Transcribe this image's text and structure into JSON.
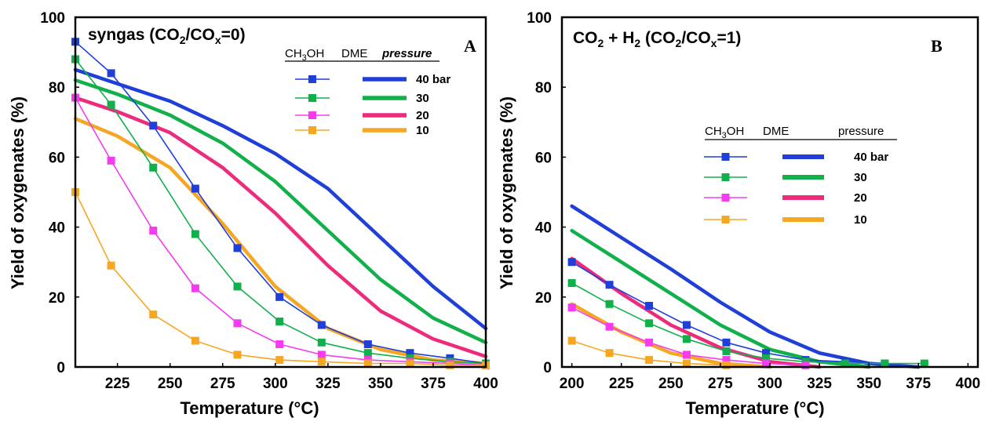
{
  "chart_data": [
    {
      "panel": "A",
      "type": "line",
      "title_main": "syngas (CO",
      "title_sub1": "2",
      "title_mid": "/CO",
      "title_sub2": "x",
      "title_end": "=0)",
      "xlabel": "Temperature (°C)",
      "ylabel": "Yield of oxygenates (%)",
      "xlim": [
        205,
        400
      ],
      "ylim": [
        0,
        100
      ],
      "xticks": [
        225,
        250,
        275,
        300,
        325,
        350,
        375,
        400
      ],
      "yticks": [
        0,
        20,
        40,
        60,
        80,
        100
      ],
      "legend": {
        "placement": "top-right",
        "headers": [
          "CH3OH",
          "DME",
          "pressure"
        ],
        "header_ch3oh_main": "CH",
        "header_ch3oh_sub": "3",
        "header_ch3oh_end": "OH",
        "header_dme": "DME",
        "header_pressure": "pressure",
        "pressure_italic": true,
        "labels": [
          "40 bar",
          "30",
          "20",
          "10"
        ]
      },
      "series": [
        {
          "group": "CH3OH",
          "pressure": "40 bar",
          "color": "#1f3fd8",
          "markers": true,
          "x": [
            205,
            222,
            242,
            262,
            282,
            302,
            322,
            344,
            364,
            383,
            400
          ],
          "y": [
            93,
            84,
            69,
            51,
            34,
            20,
            12,
            6.5,
            4,
            2.5,
            1
          ]
        },
        {
          "group": "CH3OH",
          "pressure": "30",
          "color": "#12b04a",
          "markers": true,
          "x": [
            205,
            222,
            242,
            262,
            282,
            302,
            322,
            344,
            364,
            383,
            400
          ],
          "y": [
            88,
            75,
            57,
            38,
            23,
            13,
            7,
            4,
            2.5,
            1.5,
            1
          ]
        },
        {
          "group": "CH3OH",
          "pressure": "20",
          "color": "#f43bf0",
          "markers": true,
          "x": [
            205,
            222,
            242,
            262,
            282,
            302,
            322,
            344,
            364,
            383,
            400
          ],
          "y": [
            77,
            59,
            39,
            22.5,
            12.5,
            6.5,
            3.5,
            2,
            1.5,
            1,
            0.5
          ]
        },
        {
          "group": "CH3OH",
          "pressure": "10",
          "color": "#f5a623",
          "markers": true,
          "x": [
            205,
            222,
            242,
            262,
            282,
            302,
            322,
            344,
            364,
            383,
            400
          ],
          "y": [
            50,
            29,
            15,
            7.5,
            3.5,
            2,
            1.5,
            1,
            1,
            0.5,
            0.5
          ]
        },
        {
          "group": "DME",
          "pressure": "40 bar",
          "color": "#1f3fd8",
          "markers": false,
          "x": [
            205,
            225,
            250,
            275,
            300,
            325,
            350,
            375,
            400
          ],
          "y": [
            85,
            81,
            76,
            69,
            61,
            51,
            37,
            23,
            11
          ]
        },
        {
          "group": "DME",
          "pressure": "30",
          "color": "#12b04a",
          "markers": false,
          "x": [
            205,
            225,
            250,
            275,
            300,
            325,
            350,
            375,
            400
          ],
          "y": [
            82,
            78,
            72,
            64,
            53,
            39,
            25,
            14,
            7
          ]
        },
        {
          "group": "DME",
          "pressure": "20",
          "color": "#ee2a7b",
          "markers": false,
          "x": [
            205,
            225,
            250,
            275,
            300,
            325,
            350,
            375,
            400
          ],
          "y": [
            77,
            73,
            67,
            57,
            44,
            29,
            16,
            8,
            3
          ]
        },
        {
          "group": "DME",
          "pressure": "10",
          "color": "#f5a623",
          "markers": false,
          "x": [
            205,
            225,
            250,
            275,
            300,
            325,
            350,
            375,
            400
          ],
          "y": [
            71,
            66,
            57,
            41,
            23,
            11,
            5,
            2,
            1
          ]
        }
      ]
    },
    {
      "panel": "B",
      "type": "line",
      "title_main": "CO",
      "title_sub1": "2",
      "title_mid": " + H",
      "title_sub2": "2",
      "title_mid2": " (CO",
      "title_sub3": "2",
      "title_mid3": "/CO",
      "title_sub4": "x",
      "title_end": "=1)",
      "xlabel": "Temperature (°C)",
      "ylabel": "Yield of oxygenates (%)",
      "xlim": [
        195,
        405
      ],
      "ylim": [
        0,
        100
      ],
      "xticks": [
        200,
        225,
        250,
        275,
        300,
        325,
        350,
        375,
        400
      ],
      "yticks": [
        0,
        20,
        40,
        60,
        80,
        100
      ],
      "legend": {
        "placement": "center-right",
        "header_ch3oh_main": "CH",
        "header_ch3oh_sub": "3",
        "header_ch3oh_end": "OH",
        "header_dme": "DME",
        "header_pressure": "pressure",
        "labels": [
          "40 bar",
          "30",
          "20",
          "10"
        ]
      },
      "series": [
        {
          "group": "CH3OH",
          "pressure": "40 bar",
          "color": "#1f3fd8",
          "markers": true,
          "x": [
            200,
            219,
            239,
            258,
            278,
            298,
            318,
            338,
            358
          ],
          "y": [
            30,
            23.5,
            17.5,
            12,
            7,
            4,
            2,
            1.5,
            1
          ]
        },
        {
          "group": "CH3OH",
          "pressure": "30",
          "color": "#12b04a",
          "markers": true,
          "x": [
            200,
            219,
            239,
            258,
            278,
            298,
            318,
            338,
            358,
            378
          ],
          "y": [
            24,
            18,
            12.5,
            8,
            4.5,
            2.5,
            1.5,
            1,
            1,
            1
          ]
        },
        {
          "group": "CH3OH",
          "pressure": "20",
          "color": "#f43bf0",
          "markers": true,
          "x": [
            200,
            219,
            239,
            258,
            278,
            298,
            318
          ],
          "y": [
            17,
            11.5,
            7,
            3.5,
            2,
            1,
            0.5
          ]
        },
        {
          "group": "CH3OH",
          "pressure": "10",
          "color": "#f5a623",
          "markers": true,
          "x": [
            200,
            219,
            239,
            258,
            278
          ],
          "y": [
            7.5,
            4,
            2,
            1,
            0.5
          ]
        },
        {
          "group": "DME",
          "pressure": "40 bar",
          "color": "#1f3fd8",
          "markers": false,
          "x": [
            200,
            225,
            250,
            275,
            300,
            325,
            350,
            375
          ],
          "y": [
            46,
            37,
            28,
            18.5,
            10,
            4,
            1,
            0
          ]
        },
        {
          "group": "DME",
          "pressure": "30",
          "color": "#12b04a",
          "markers": false,
          "x": [
            200,
            225,
            250,
            275,
            300,
            325,
            350
          ],
          "y": [
            39,
            30,
            21,
            12,
            5,
            1.5,
            0
          ]
        },
        {
          "group": "DME",
          "pressure": "20",
          "color": "#ee2a7b",
          "markers": false,
          "x": [
            200,
            225,
            250,
            275,
            300,
            325
          ],
          "y": [
            31,
            21,
            12,
            5.5,
            1.5,
            0
          ]
        },
        {
          "group": "DME",
          "pressure": "10",
          "color": "#f5a623",
          "markers": false,
          "x": [
            200,
            225,
            250,
            275,
            300
          ],
          "y": [
            18,
            10,
            4,
            1,
            0
          ]
        }
      ]
    }
  ]
}
